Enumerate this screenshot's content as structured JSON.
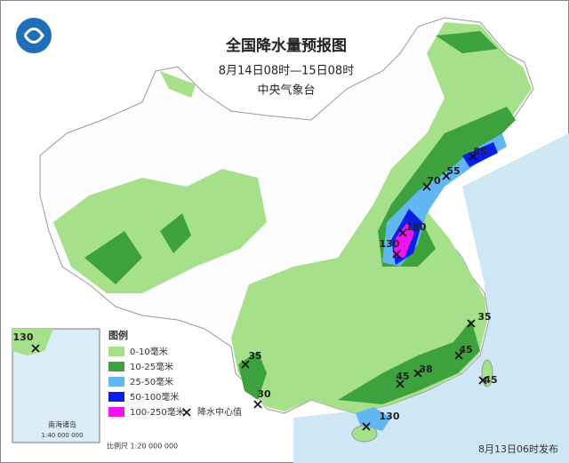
{
  "header": {
    "title": "全国降水量预报图",
    "subtitle": "8月14日08时—15日08时",
    "issuer": "中央气象台"
  },
  "legend": {
    "title": "图例",
    "items": [
      {
        "label": "0-10毫米",
        "color": "#a6e08a"
      },
      {
        "label": "10-25毫米",
        "color": "#3da23d"
      },
      {
        "label": "25-50毫米",
        "color": "#62b6f2"
      },
      {
        "label": "50-100毫米",
        "color": "#0a1ee6"
      },
      {
        "label": "100-250毫米",
        "color": "#f012f0"
      }
    ],
    "center_label": "降水中心值"
  },
  "centers": [
    {
      "value": 180
    },
    {
      "value": 130
    },
    {
      "value": 85
    },
    {
      "value": 70
    },
    {
      "value": 55
    },
    {
      "value": 35
    },
    {
      "value": 45
    },
    {
      "value": 45
    },
    {
      "value": 38
    },
    {
      "value": 45
    },
    {
      "value": 35
    },
    {
      "value": 30
    },
    {
      "value": 130
    }
  ],
  "inset": {
    "label": "南海诸岛",
    "center": {
      "value": 130
    },
    "scale": "1:40 000 000"
  },
  "footer": {
    "scale": "比例尺  1:20 000 000",
    "issued": "8月13日06时发布"
  }
}
